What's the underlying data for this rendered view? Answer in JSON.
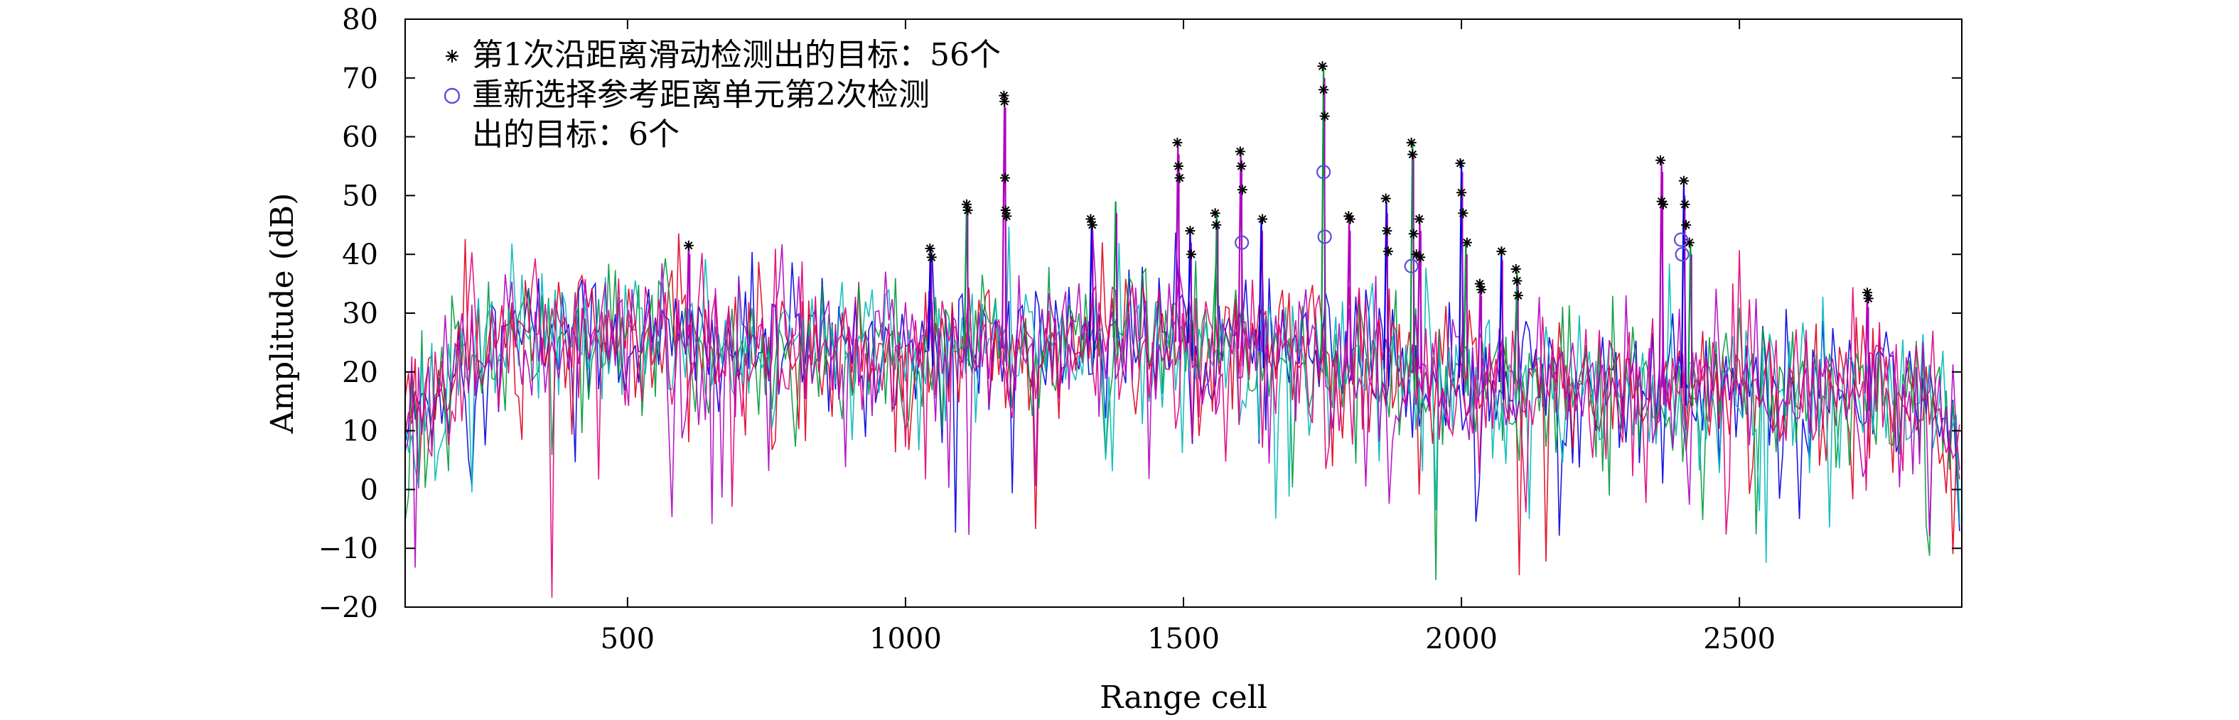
{
  "chart_data": {
    "type": "line",
    "title": "",
    "xlabel": "Range cell",
    "ylabel": "Amplitude (dB)",
    "xlim": [
      100,
      2900
    ],
    "ylim": [
      -20,
      80
    ],
    "x_ticks": [
      500,
      1000,
      1500,
      2000,
      2500
    ],
    "y_ticks": [
      -20,
      -10,
      0,
      10,
      20,
      30,
      40,
      50,
      60,
      70,
      80
    ],
    "grid": false,
    "legend_position": "top-left",
    "legend": [
      {
        "label": "第1次沿距离滑动检测出的目标：56个",
        "marker": "asterisk",
        "color": "#000000"
      },
      {
        "label": "重新选择参考距离单元第2次检测",
        "label_cont": "出的目标：6个",
        "marker": "circle",
        "color": "#5b4fd8"
      }
    ],
    "series_colors": [
      "#0000e0",
      "#e00020",
      "#009a3a",
      "#00b8b8",
      "#b000c0",
      "#e0007a"
    ],
    "clutter_profile": [
      {
        "x": 100,
        "y": 10
      },
      {
        "x": 200,
        "y": 22
      },
      {
        "x": 300,
        "y": 26
      },
      {
        "x": 400,
        "y": 27
      },
      {
        "x": 500,
        "y": 25
      },
      {
        "x": 700,
        "y": 24
      },
      {
        "x": 1000,
        "y": 24
      },
      {
        "x": 1200,
        "y": 24
      },
      {
        "x": 1400,
        "y": 26
      },
      {
        "x": 1700,
        "y": 23
      },
      {
        "x": 1900,
        "y": 20
      },
      {
        "x": 2100,
        "y": 18
      },
      {
        "x": 2500,
        "y": 17
      },
      {
        "x": 2850,
        "y": 16
      },
      {
        "x": 2900,
        "y": 2
      }
    ],
    "peaks": [
      {
        "x": 610,
        "y": 42
      },
      {
        "x": 1045,
        "y": 41
      },
      {
        "x": 1110,
        "y": 49
      },
      {
        "x": 1178,
        "y": 67
      },
      {
        "x": 1335,
        "y": 46
      },
      {
        "x": 1378,
        "y": 49
      },
      {
        "x": 1490,
        "y": 59
      },
      {
        "x": 1512,
        "y": 44
      },
      {
        "x": 1560,
        "y": 47
      },
      {
        "x": 1603,
        "y": 58
      },
      {
        "x": 1640,
        "y": 46
      },
      {
        "x": 1752,
        "y": 72
      },
      {
        "x": 1798,
        "y": 46
      },
      {
        "x": 1865,
        "y": 49
      },
      {
        "x": 1912,
        "y": 59
      },
      {
        "x": 1925,
        "y": 46
      },
      {
        "x": 2000,
        "y": 56
      },
      {
        "x": 2008,
        "y": 42
      },
      {
        "x": 2034,
        "y": 35
      },
      {
        "x": 2072,
        "y": 41
      },
      {
        "x": 2100,
        "y": 37
      },
      {
        "x": 2360,
        "y": 56
      },
      {
        "x": 2400,
        "y": 52
      },
      {
        "x": 2412,
        "y": 42
      },
      {
        "x": 2730,
        "y": 33
      }
    ],
    "detections_pass1": [
      {
        "x": 610,
        "y": 41.5
      },
      {
        "x": 1044,
        "y": 41
      },
      {
        "x": 1047,
        "y": 39.5
      },
      {
        "x": 1110,
        "y": 48.5
      },
      {
        "x": 1112,
        "y": 47.5
      },
      {
        "x": 1177,
        "y": 67
      },
      {
        "x": 1178,
        "y": 66
      },
      {
        "x": 1179,
        "y": 53
      },
      {
        "x": 1180,
        "y": 47.5
      },
      {
        "x": 1182,
        "y": 46.5
      },
      {
        "x": 1333,
        "y": 46
      },
      {
        "x": 1336,
        "y": 45
      },
      {
        "x": 1489,
        "y": 59
      },
      {
        "x": 1491,
        "y": 55
      },
      {
        "x": 1493,
        "y": 53
      },
      {
        "x": 1512,
        "y": 44
      },
      {
        "x": 1514,
        "y": 40
      },
      {
        "x": 1557,
        "y": 47
      },
      {
        "x": 1559,
        "y": 45
      },
      {
        "x": 1602,
        "y": 57.5
      },
      {
        "x": 1604,
        "y": 55
      },
      {
        "x": 1606,
        "y": 51
      },
      {
        "x": 1642,
        "y": 46
      },
      {
        "x": 1750,
        "y": 72
      },
      {
        "x": 1752,
        "y": 68
      },
      {
        "x": 1754,
        "y": 63.5
      },
      {
        "x": 1797,
        "y": 46.5
      },
      {
        "x": 1800,
        "y": 46
      },
      {
        "x": 1864,
        "y": 49.5
      },
      {
        "x": 1866,
        "y": 44
      },
      {
        "x": 1868,
        "y": 40.5
      },
      {
        "x": 1910,
        "y": 59
      },
      {
        "x": 1912,
        "y": 57
      },
      {
        "x": 1914,
        "y": 43.5
      },
      {
        "x": 1919,
        "y": 40
      },
      {
        "x": 1924,
        "y": 46
      },
      {
        "x": 1926,
        "y": 39.5
      },
      {
        "x": 1998,
        "y": 55.5
      },
      {
        "x": 2000,
        "y": 50.5
      },
      {
        "x": 2003,
        "y": 47
      },
      {
        "x": 2010,
        "y": 42
      },
      {
        "x": 2033,
        "y": 35
      },
      {
        "x": 2036,
        "y": 34
      },
      {
        "x": 2072,
        "y": 40.5
      },
      {
        "x": 2098,
        "y": 37.5
      },
      {
        "x": 2100,
        "y": 35.5
      },
      {
        "x": 2102,
        "y": 33
      },
      {
        "x": 2358,
        "y": 56
      },
      {
        "x": 2360,
        "y": 49
      },
      {
        "x": 2363,
        "y": 48.5
      },
      {
        "x": 2400,
        "y": 52.5
      },
      {
        "x": 2402,
        "y": 48.5
      },
      {
        "x": 2404,
        "y": 45
      },
      {
        "x": 2410,
        "y": 42
      },
      {
        "x": 2730,
        "y": 33.5
      },
      {
        "x": 2732,
        "y": 32.5
      }
    ],
    "detections_pass2": [
      {
        "x": 1605,
        "y": 42
      },
      {
        "x": 1752,
        "y": 54
      },
      {
        "x": 1754,
        "y": 43
      },
      {
        "x": 1910,
        "y": 38
      },
      {
        "x": 2395,
        "y": 42.5
      },
      {
        "x": 2397,
        "y": 40
      }
    ]
  }
}
